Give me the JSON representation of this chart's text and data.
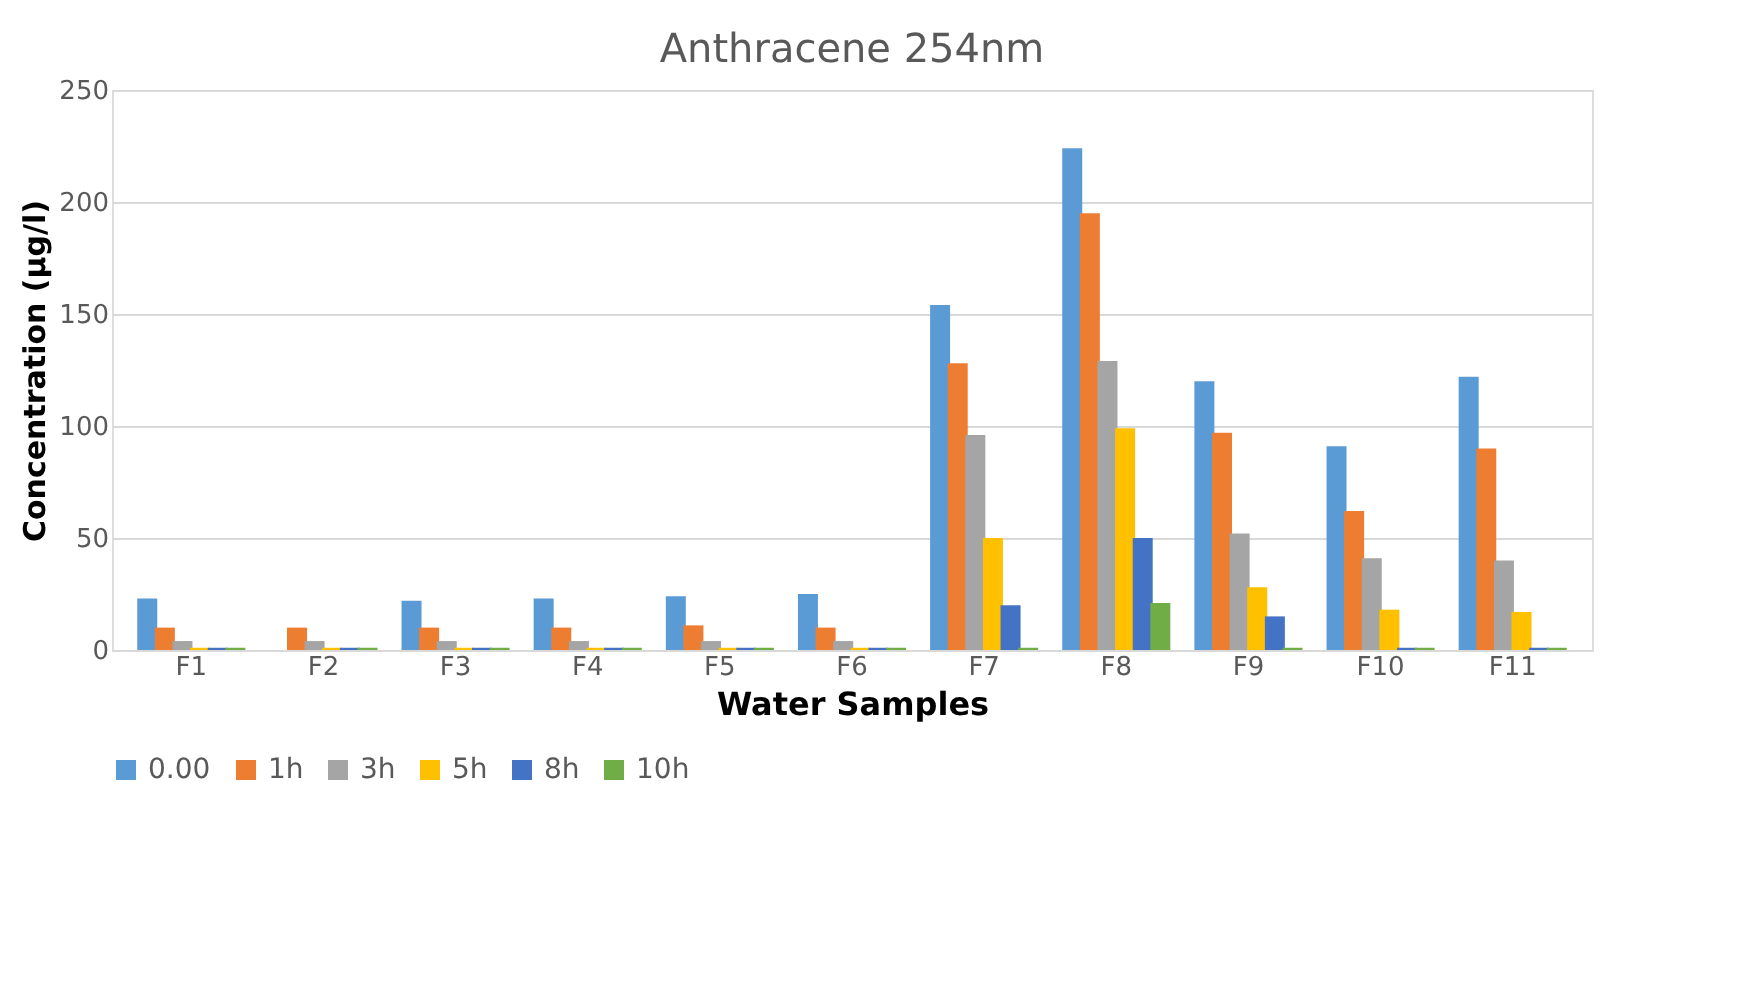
{
  "chart_data": {
    "type": "bar",
    "title": "Anthracene 254nm",
    "xlabel": "Water Samples",
    "ylabel": "Concentration (µg/l)",
    "categories": [
      "F1",
      "F2",
      "F3",
      "F4",
      "F5",
      "F6",
      "F7",
      "F8",
      "F9",
      "F10",
      "F11"
    ],
    "series": [
      {
        "name": "0.00",
        "color": "#5b9bd5",
        "values": [
          23,
          0,
          22,
          23,
          24,
          25,
          154,
          224,
          120,
          91,
          122
        ]
      },
      {
        "name": "1h",
        "color": "#ed7d31",
        "values": [
          10,
          10,
          10,
          10,
          11,
          10,
          128,
          195,
          97,
          62,
          90
        ]
      },
      {
        "name": "3h",
        "color": "#a5a5a5",
        "values": [
          4,
          4,
          4,
          4,
          4,
          4,
          96,
          129,
          52,
          41,
          40
        ]
      },
      {
        "name": "5h",
        "color": "#ffc000",
        "values": [
          1,
          1,
          1,
          1,
          1,
          1,
          50,
          99,
          28,
          18,
          17
        ]
      },
      {
        "name": "8h",
        "color": "#4472c4",
        "values": [
          1,
          1,
          1,
          1,
          1,
          1,
          20,
          50,
          15,
          1,
          1
        ]
      },
      {
        "name": "10h",
        "color": "#70ad47",
        "values": [
          1,
          1,
          1,
          1,
          1,
          1,
          1,
          21,
          1,
          1,
          1
        ]
      }
    ],
    "ylim": [
      0,
      250
    ],
    "yticks": [
      0,
      50,
      100,
      150,
      200,
      250
    ],
    "grid": "y",
    "legend": "bottom"
  }
}
